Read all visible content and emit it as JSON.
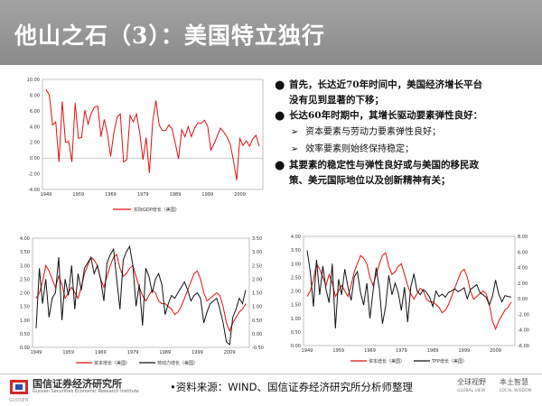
{
  "title": "他山之石（3）：美国特立独行",
  "bullets": [
    {
      "type": "main",
      "text": "首先，长达近70年时间中，美国经济增长平台"
    },
    {
      "type": "cont",
      "text": "没有见到显著的下移；"
    },
    {
      "type": "main",
      "text": "长达60年时期中，其增长驱动要素弹性良好："
    },
    {
      "type": "sub",
      "text": "资本要素与劳动力要素弹性良好；"
    },
    {
      "type": "sub",
      "text": "效率要素则始终保持稳定；"
    },
    {
      "type": "main",
      "text": "其要素的稳定性与弹性良好或与美国的移民政"
    },
    {
      "type": "cont",
      "text": "策、美元国际地位以及创新精神有关；"
    }
  ],
  "bullet_icon": "black-dot",
  "sub_icon": "arrow-right",
  "footer": {
    "org_name": "国信证券经济研究所",
    "org_en": "Guosen Securities Economic Research Institute",
    "org_en2": "GUOSEN",
    "source": "•资料来源：WIND、国信证券经济研究所分析师整理",
    "slogan1": "全球视野",
    "slogan1_en": "GLOBAL VIEW",
    "slogan2": "本土智慧",
    "slogan2_en": "LOCAL WISDOM"
  },
  "colors": {
    "red": "#e01010",
    "black": "#111111",
    "title_bar": "#969696"
  },
  "chart_data": [
    {
      "type": "line",
      "x_ticks": [
        "1949",
        "1959",
        "1969",
        "1979",
        "1989",
        "1999",
        "2009"
      ],
      "ylim": [
        -4,
        10
      ],
      "y_ticks": [
        "10.00",
        "8.00",
        "6.00",
        "4.00",
        "2.00",
        "0.00",
        "-2.00",
        "-4.00"
      ],
      "series": [
        {
          "name": "实际GDP增长（美国）",
          "color": "#e01010",
          "values": [
            8.7,
            8.0,
            4.2,
            4.6,
            -0.5,
            7.2,
            2.0,
            2.1,
            -0.5,
            7.0,
            2.5,
            2.6,
            6.1,
            4.3,
            5.7,
            6.5,
            6.6,
            2.7,
            4.9,
            3.1,
            0.2,
            3.3,
            5.2,
            5.6,
            -0.5,
            -0.2,
            5.4,
            4.6,
            5.6,
            3.2,
            -0.2,
            2.6,
            -1.9,
            4.6,
            7.3,
            4.2,
            3.5,
            3.5,
            4.2,
            3.7,
            1.9,
            -0.1,
            3.6,
            2.7,
            4.0,
            2.7,
            3.8,
            4.5,
            4.4,
            4.8,
            4.1,
            1.0,
            1.8,
            2.8,
            3.8,
            3.3,
            2.7,
            1.8,
            -0.3,
            -2.8,
            2.5,
            1.6,
            2.2,
            1.5,
            2.4,
            2.9,
            1.5
          ]
        }
      ]
    },
    {
      "type": "line",
      "x_ticks": [
        "1949",
        "1959",
        "1969",
        "1979",
        "1989",
        "1999",
        "2009"
      ],
      "ylim": [
        0,
        4
      ],
      "y_ticks": [
        "4.00",
        "3.50",
        "3.00",
        "2.50",
        "2.00",
        "1.50",
        "1.00",
        "0.50",
        "0.00"
      ],
      "y2lim": [
        -0.5,
        3.5
      ],
      "y2_ticks": [
        "3.50",
        "3.00",
        "2.50",
        "2.00",
        "1.50",
        "1.00",
        "0.50",
        "0.00",
        "-0.50"
      ],
      "series": [
        {
          "name": "资本增长（美国）",
          "axis": "left",
          "color": "#e01010",
          "values": [
            1.8,
            2.0,
            2.4,
            3.0,
            2.8,
            2.5,
            2.2,
            2.6,
            2.3,
            1.8,
            2.0,
            2.2,
            2.0,
            1.8,
            2.2,
            2.7,
            3.0,
            3.3,
            3.2,
            3.0,
            2.5,
            2.2,
            2.6,
            3.0,
            3.3,
            3.4,
            2.9,
            2.6,
            2.7,
            2.9,
            3.0,
            2.6,
            2.2,
            1.9,
            1.7,
            1.9,
            2.1,
            2.0,
            1.7,
            1.6,
            1.6,
            1.5,
            1.4,
            1.2,
            1.3,
            1.5,
            1.8,
            2.1,
            2.4,
            2.7,
            2.8,
            2.5,
            2.0,
            1.7,
            1.8,
            1.9,
            2.0,
            1.9,
            1.5,
            0.9,
            0.6,
            0.9,
            1.1,
            1.3,
            1.4,
            1.6
          ]
        },
        {
          "name": "劳动力增长（美国）",
          "axis": "right",
          "color": "#111111",
          "values": [
            0.2,
            2.4,
            1.1,
            2.0,
            0.6,
            1.3,
            1.5,
            2.8,
            0.5,
            2.0,
            1.4,
            2.5,
            0.9,
            2.2,
            1.6,
            2.4,
            2.6,
            2.8,
            2.2,
            2.5,
            2.0,
            1.2,
            2.6,
            2.9,
            3.1,
            2.0,
            0.9,
            2.7,
            3.0,
            3.2,
            2.5,
            1.0,
            1.8,
            0.3,
            2.4,
            2.1,
            1.5,
            2.0,
            2.2,
            1.8,
            0.7,
            1.1,
            1.4,
            1.3,
            1.5,
            1.7,
            1.9,
            1.6,
            1.2,
            1.4,
            1.5,
            1.3,
            0.4,
            0.8,
            1.1,
            1.2,
            1.3,
            0.9,
            0.4,
            -0.3,
            -0.4,
            0.6,
            0.9,
            1.3,
            1.1,
            1.6
          ]
        }
      ]
    },
    {
      "type": "line",
      "x_ticks": [
        "1949",
        "1959",
        "1969",
        "1979",
        "1989",
        "1999",
        "2009"
      ],
      "ylim": [
        0,
        4
      ],
      "y_ticks": [
        "4.00",
        "3.50",
        "3.00",
        "2.50",
        "2.00",
        "1.50",
        "1.00",
        "0.50",
        "0.00"
      ],
      "y2lim": [
        -6,
        8
      ],
      "y2_ticks": [
        "8.00",
        "6.00",
        "4.00",
        "2.00",
        "0.00",
        "-2.00",
        "-4.00",
        "-6.00"
      ],
      "series": [
        {
          "name": "资本增长（美国）",
          "axis": "left",
          "color": "#e01010",
          "values": [
            1.8,
            2.0,
            2.4,
            3.0,
            2.8,
            2.5,
            2.2,
            2.6,
            2.3,
            1.8,
            2.0,
            2.2,
            2.0,
            1.8,
            2.2,
            2.7,
            3.0,
            3.3,
            3.2,
            3.0,
            2.5,
            2.2,
            2.6,
            3.0,
            3.3,
            3.4,
            2.9,
            2.6,
            2.7,
            2.9,
            3.0,
            2.6,
            2.2,
            1.9,
            1.7,
            1.9,
            2.1,
            2.0,
            1.7,
            1.6,
            1.6,
            1.5,
            1.4,
            1.2,
            1.3,
            1.5,
            1.8,
            2.1,
            2.4,
            2.7,
            2.8,
            2.5,
            2.0,
            1.7,
            1.8,
            1.9,
            2.0,
            1.9,
            1.5,
            0.9,
            0.6,
            0.9,
            1.1,
            1.3,
            1.4,
            1.6
          ]
        },
        {
          "name": "TFP增长（美国）",
          "axis": "right",
          "color": "#111111",
          "values": [
            6.2,
            3.5,
            -1.0,
            5.0,
            0.5,
            4.2,
            1.2,
            -0.5,
            4.5,
            -3.8,
            2.5,
            0.5,
            3.8,
            1.5,
            -0.2,
            2.8,
            3.5,
            0.8,
            -0.8,
            2.0,
            -2.5,
            1.0,
            4.0,
            1.2,
            -3.2,
            -1.0,
            3.0,
            0.5,
            2.0,
            0.8,
            -1.5,
            1.5,
            -3.0,
            1.5,
            3.2,
            1.0,
            0.5,
            1.2,
            0.8,
            0.2,
            -1.0,
            1.0,
            0.3,
            0.6,
            0.2,
            0.8,
            1.0,
            1.3,
            0.9,
            1.1,
            1.4,
            0.0,
            1.2,
            1.5,
            1.8,
            0.8,
            0.5,
            0.2,
            -0.8,
            0.3,
            2.4,
            0.6,
            -0.4,
            0.4,
            0.3,
            0.2
          ]
        }
      ]
    }
  ]
}
